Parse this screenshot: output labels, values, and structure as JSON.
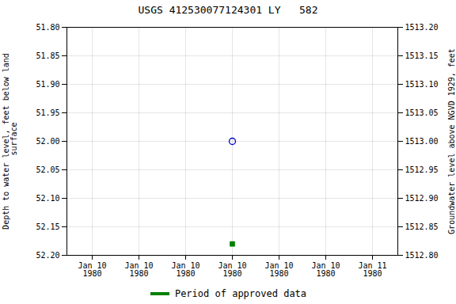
{
  "chart_data": {
    "type": "scatter",
    "title": "USGS 412530077124301 LY   582",
    "ylabel": "Depth to water level, feet below land\n surface",
    "y2label": "Groundwater level above NGVD 1929, feet",
    "categories": [
      "Jan 10\n1980",
      "Jan 10\n1980",
      "Jan 10\n1980",
      "Jan 10\n1980",
      "Jan 10\n1980",
      "Jan 10\n1980",
      "Jan 11\n1980"
    ],
    "series": [
      {
        "name": "Period of approved data",
        "color": "#008000",
        "marker": "square",
        "values": [
          null,
          null,
          null,
          52.18,
          null,
          null,
          null
        ]
      },
      {
        "color": "#0000cc",
        "marker": "circle",
        "values": [
          null,
          null,
          null,
          52,
          null,
          null,
          null
        ]
      }
    ],
    "ylim": [
      52.2,
      51.8
    ],
    "yticks": [
      {
        "value": 51.8,
        "label": "51.80"
      },
      51.85,
      {
        "value": 51.9,
        "label": "51.90"
      },
      51.95,
      {
        "value": 52,
        "label": "52.00"
      },
      52.05,
      {
        "value": 52.1,
        "label": "52.10"
      },
      52.15,
      {
        "value": 52.2,
        "label": "52.20"
      }
    ],
    "y2lim": [
      1512.8,
      1513.2
    ],
    "y2ticks": [
      {
        "value": 1512.8,
        "label": "1512.80"
      },
      1512.85,
      {
        "value": 1512.9,
        "label": "1512.90"
      },
      1512.95,
      {
        "value": 1513,
        "label": "1513.00"
      },
      1513.05,
      {
        "value": 1513.1,
        "label": "1513.10"
      },
      1513.15,
      {
        "value": 1513.2,
        "label": "1513.20"
      }
    ],
    "grid": true,
    "legend": "bottom"
  }
}
